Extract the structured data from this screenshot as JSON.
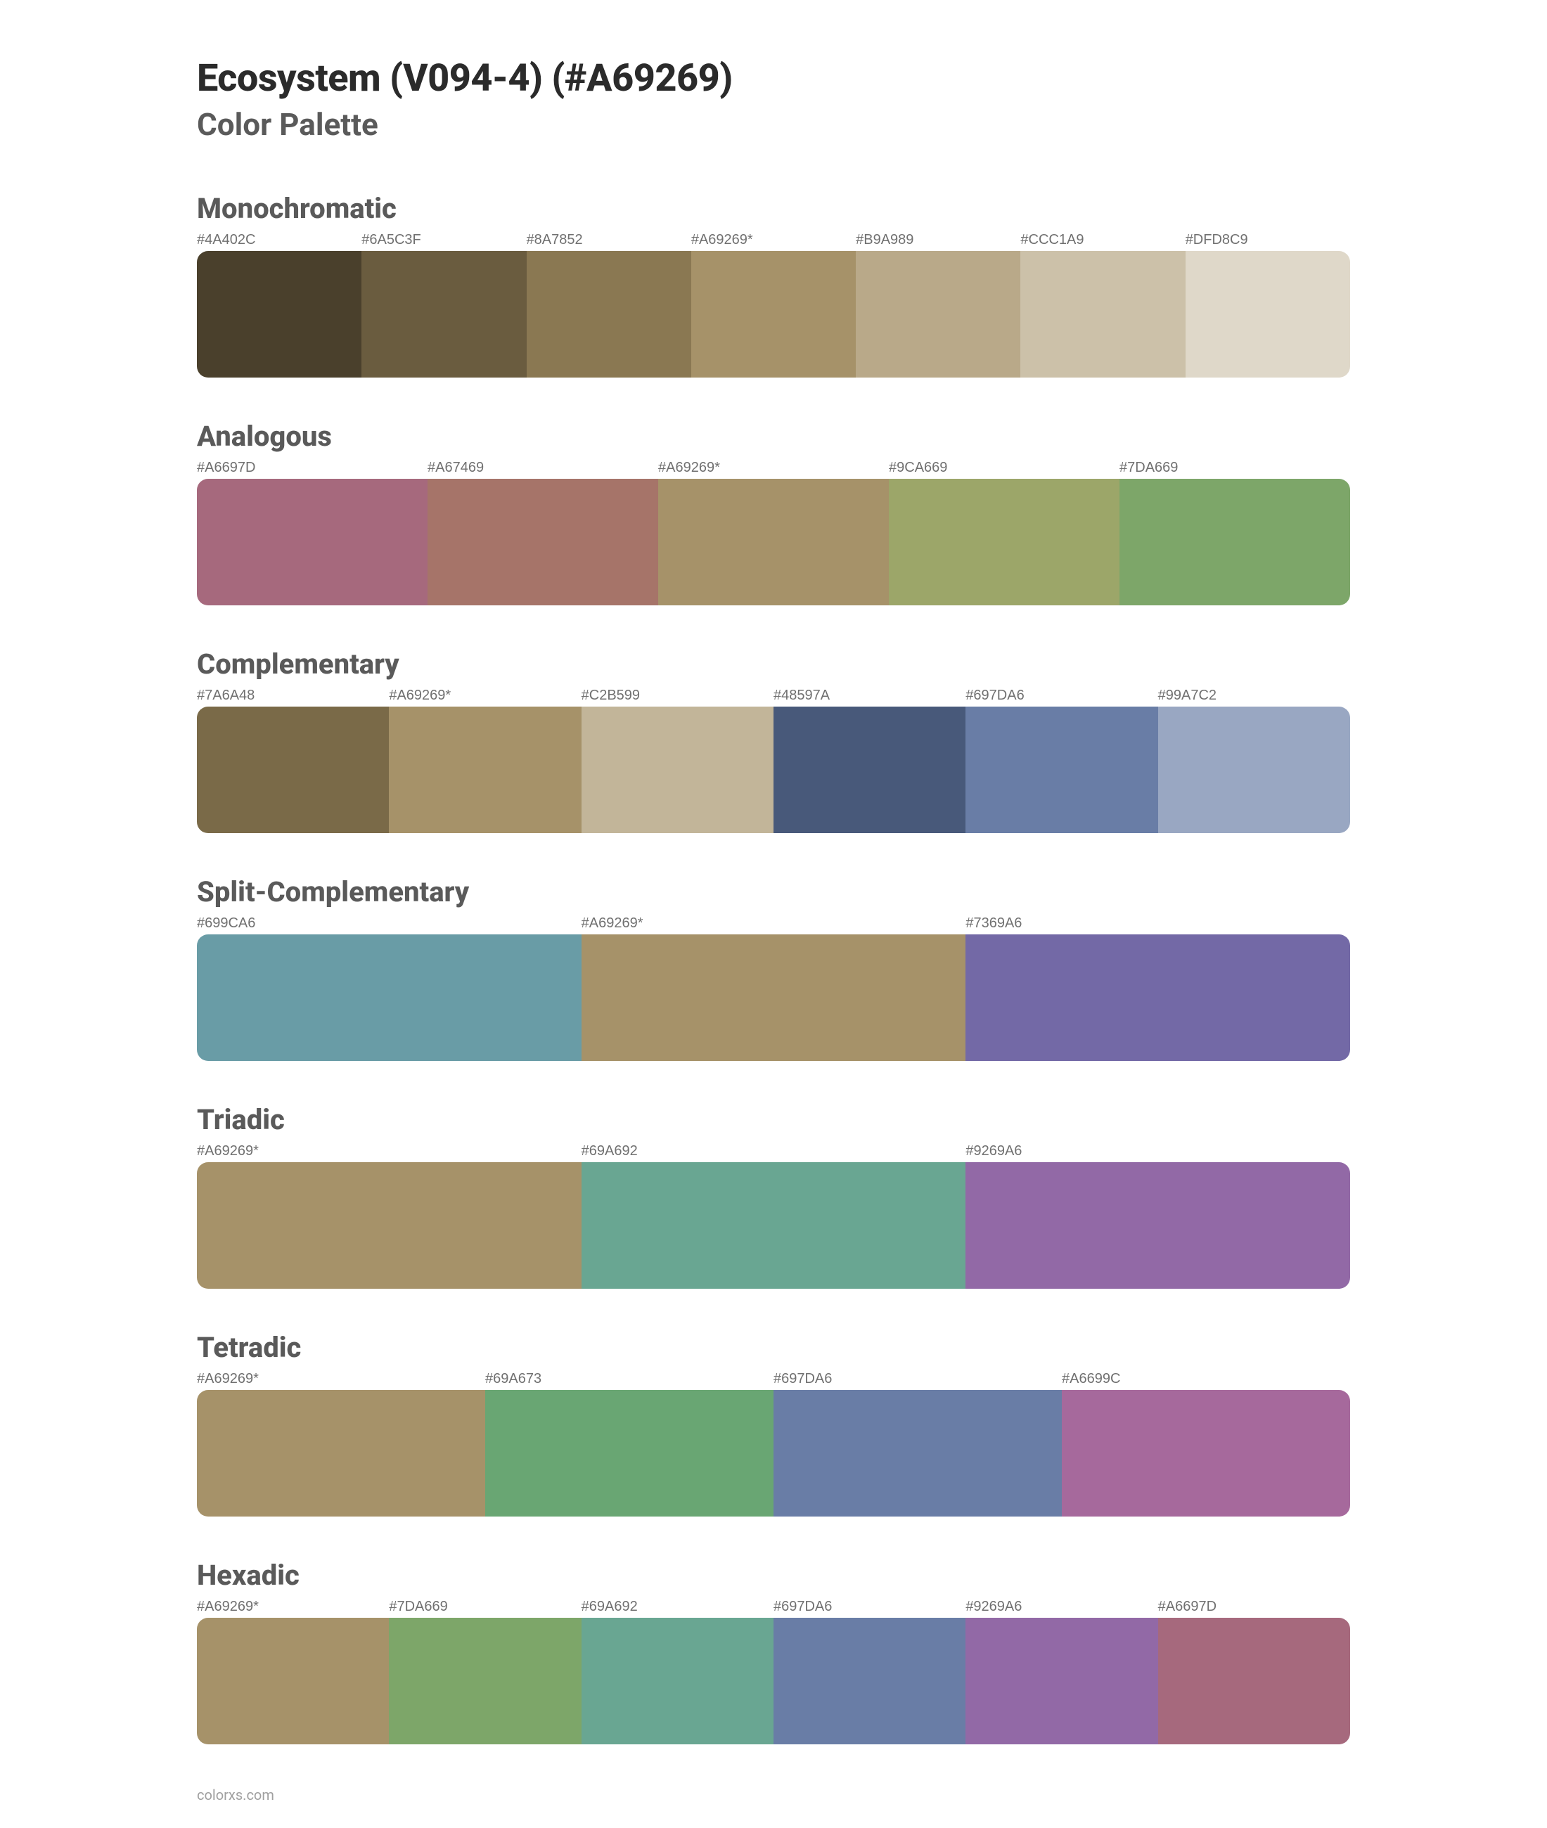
{
  "page": {
    "title": "Ecosystem (V094-4) (#A69269)",
    "subtitle": "Color Palette",
    "footer": "colorxs.com",
    "background_color": "#ffffff",
    "title_color": "#2b2b2b",
    "subtitle_color": "#5a5a5a",
    "section_title_color": "#5a5a5a",
    "label_color": "#707070",
    "title_fontsize": 54,
    "subtitle_fontsize": 44,
    "section_title_fontsize": 40,
    "label_fontsize": 20,
    "swatch_height": 180,
    "swatch_border_radius": 16
  },
  "sections": [
    {
      "title": "Monochromatic",
      "swatches": [
        {
          "label": "#4A402C",
          "color": "#4A402C"
        },
        {
          "label": "#6A5C3F",
          "color": "#6A5C3F"
        },
        {
          "label": "#8A7852",
          "color": "#8A7852"
        },
        {
          "label": "#A69269*",
          "color": "#A69269"
        },
        {
          "label": "#B9A989",
          "color": "#B9A989"
        },
        {
          "label": "#CCC1A9",
          "color": "#CCC1A9"
        },
        {
          "label": "#DFD8C9",
          "color": "#DFD8C9"
        }
      ]
    },
    {
      "title": "Analogous",
      "swatches": [
        {
          "label": "#A6697D",
          "color": "#A6697D"
        },
        {
          "label": "#A67469",
          "color": "#A67469"
        },
        {
          "label": "#A69269*",
          "color": "#A69269"
        },
        {
          "label": "#9CA669",
          "color": "#9CA669"
        },
        {
          "label": "#7DA669",
          "color": "#7DA669"
        }
      ]
    },
    {
      "title": "Complementary",
      "swatches": [
        {
          "label": "#7A6A48",
          "color": "#7A6A48"
        },
        {
          "label": "#A69269*",
          "color": "#A69269"
        },
        {
          "label": "#C2B599",
          "color": "#C2B599"
        },
        {
          "label": "#48597A",
          "color": "#48597A"
        },
        {
          "label": "#697DA6",
          "color": "#697DA6"
        },
        {
          "label": "#99A7C2",
          "color": "#99A7C2"
        }
      ]
    },
    {
      "title": "Split-Complementary",
      "swatches": [
        {
          "label": "#699CA6",
          "color": "#699CA6"
        },
        {
          "label": "#A69269*",
          "color": "#A69269"
        },
        {
          "label": "#7369A6",
          "color": "#7369A6"
        }
      ]
    },
    {
      "title": "Triadic",
      "swatches": [
        {
          "label": "#A69269*",
          "color": "#A69269"
        },
        {
          "label": "#69A692",
          "color": "#69A692"
        },
        {
          "label": "#9269A6",
          "color": "#9269A6"
        }
      ]
    },
    {
      "title": "Tetradic",
      "swatches": [
        {
          "label": "#A69269*",
          "color": "#A69269"
        },
        {
          "label": "#69A673",
          "color": "#69A673"
        },
        {
          "label": "#697DA6",
          "color": "#697DA6"
        },
        {
          "label": "#A6699C",
          "color": "#A6699C"
        }
      ]
    },
    {
      "title": "Hexadic",
      "swatches": [
        {
          "label": "#A69269*",
          "color": "#A69269"
        },
        {
          "label": "#7DA669",
          "color": "#7DA669"
        },
        {
          "label": "#69A692",
          "color": "#69A692"
        },
        {
          "label": "#697DA6",
          "color": "#697DA6"
        },
        {
          "label": "#9269A6",
          "color": "#9269A6"
        },
        {
          "label": "#A6697D",
          "color": "#A6697D"
        }
      ]
    }
  ]
}
